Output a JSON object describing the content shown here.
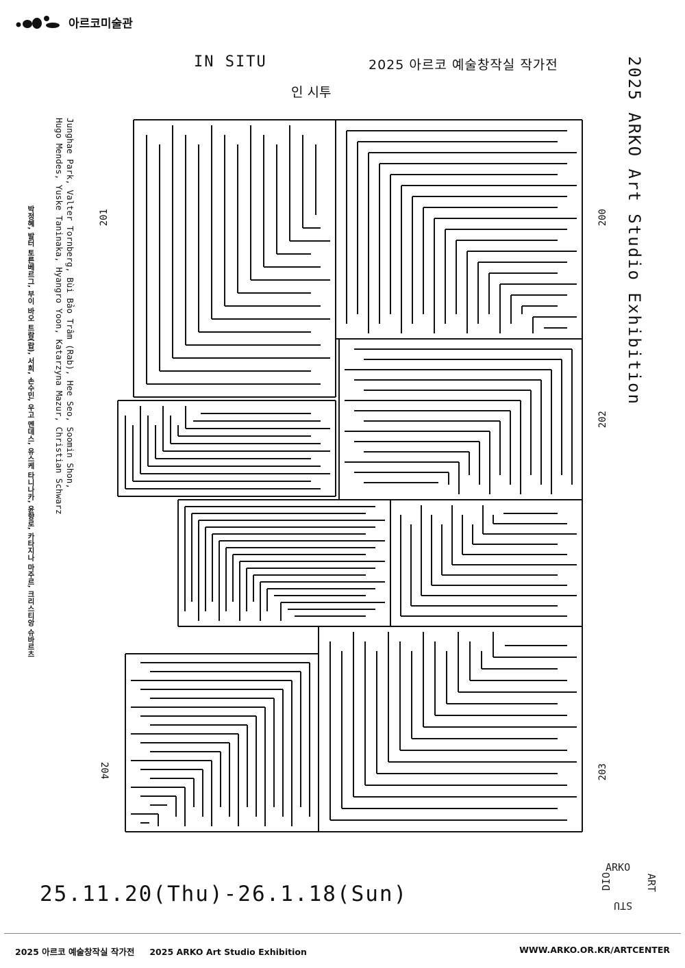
{
  "header": {
    "logo_text": "아르코미술관",
    "title_en": "IN SITU",
    "title_ko": "2025 아르코 예술창작실 작가전",
    "subtitle": "인 시투",
    "side_title": "2025 ARKO Art Studio Exhibition"
  },
  "artists": {
    "en_line1": "Junghae Park, Valter Tornberg, Bùi Bảo Trâm (Rab), Hee Seo, Soomin Shon,",
    "en_line2": "Hugo Mendes, Yuske Taninaka, Hyangro Yoon, Katarzyna Mazur, Christian Schwarz",
    "ko": "박정혜, 발터 토른베르그, 부이 바오 트람(랍), 서희, 손수민, 우고 멘데스, 유스케 타니나카, 윤향로, 카타지나 마주르, 크리스티앙 슈바르츠"
  },
  "rooms": {
    "r200": "200",
    "r201": "201",
    "r202": "202",
    "r203": "203",
    "r204": "204"
  },
  "date": "25.11.20(Thu)-26.1.18(Sun)",
  "badge": {
    "top": "ARKO",
    "right": "ART",
    "bottom": "STU",
    "left": "DIO"
  },
  "footer": {
    "title_ko": "2025 아르코 예술창작실 작가전",
    "title_en": "2025 ARKO Art Studio Exhibition",
    "url": "WWW.ARKO.OR.KR/ARTCENTER"
  },
  "colors": {
    "ink": "#111111",
    "background": "#ffffff"
  }
}
